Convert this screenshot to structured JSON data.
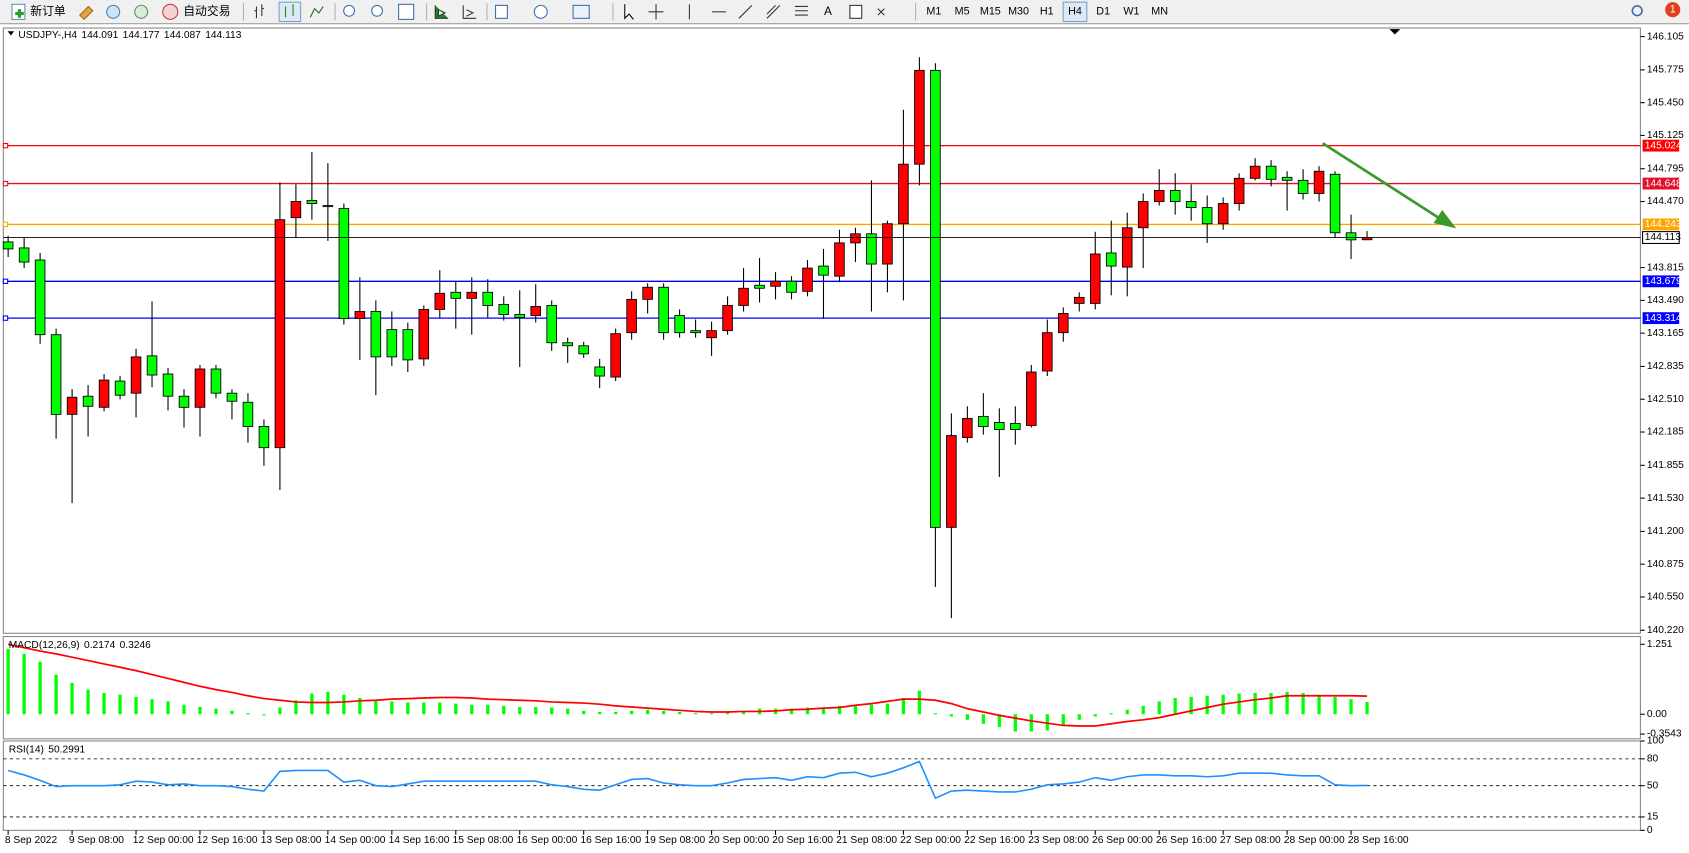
{
  "toolbar": {
    "buttons": [
      "新订单",
      "自动交易"
    ],
    "timeframes": [
      "M1",
      "M5",
      "M15",
      "M30",
      "H1",
      "H4",
      "D1",
      "W1",
      "MN"
    ],
    "active_timeframe_index": 5,
    "notifications": 1
  },
  "chart_data": [
    {
      "type": "candlestick",
      "symbol": "USDJPY-,H4",
      "up_color": "#ff0000",
      "down_color": "#00ff00",
      "open": [
        144.07,
        144.01,
        143.89,
        143.15,
        142.36,
        142.54,
        142.43,
        142.69,
        142.57,
        142.94,
        142.76,
        142.54,
        142.43,
        142.81,
        142.57,
        142.48,
        142.24,
        142.03,
        144.31,
        144.48,
        144.43,
        144.4,
        143.31,
        143.38,
        143.2,
        143.2,
        142.91,
        143.4,
        143.57,
        143.51,
        143.57,
        143.45,
        143.35,
        143.34,
        143.44,
        143.07,
        143.04,
        142.83,
        142.73,
        143.17,
        143.5,
        143.62,
        143.34,
        143.19,
        143.12,
        143.19,
        143.44,
        143.64,
        143.63,
        143.68,
        143.58,
        143.83,
        143.73,
        144.06,
        144.15,
        143.85,
        144.25,
        144.84,
        145.77,
        141.24,
        142.13,
        142.34,
        142.28,
        142.27,
        142.25,
        142.79,
        143.17,
        143.46,
        143.46,
        143.96,
        143.82,
        144.21,
        144.47,
        144.58,
        144.47,
        144.41,
        144.25,
        144.45,
        144.7,
        144.82,
        144.71,
        144.68,
        144.55,
        144.74,
        144.16,
        144.091
      ],
      "high": [
        144.13,
        144.11,
        143.96,
        143.21,
        142.61,
        142.65,
        142.76,
        142.74,
        143.01,
        143.48,
        142.82,
        142.61,
        142.85,
        142.85,
        142.61,
        142.57,
        142.31,
        144.66,
        144.64,
        144.96,
        144.85,
        144.45,
        143.72,
        143.49,
        143.38,
        143.27,
        143.44,
        143.79,
        143.68,
        143.72,
        143.7,
        143.53,
        143.59,
        143.65,
        143.49,
        143.12,
        143.08,
        142.91,
        143.21,
        143.58,
        143.66,
        143.66,
        143.4,
        143.3,
        143.28,
        143.53,
        143.81,
        143.91,
        143.77,
        143.73,
        143.89,
        144.0,
        144.19,
        144.21,
        144.68,
        144.28,
        145.38,
        145.9,
        145.84,
        142.37,
        142.44,
        142.57,
        142.42,
        142.44,
        142.85,
        143.3,
        143.42,
        143.57,
        144.17,
        144.28,
        144.36,
        144.55,
        144.79,
        144.75,
        144.64,
        144.53,
        144.51,
        144.75,
        144.9,
        144.88,
        144.77,
        144.79,
        144.82,
        144.77,
        144.34,
        144.177
      ],
      "low": [
        143.92,
        143.81,
        143.06,
        142.12,
        141.48,
        142.14,
        142.39,
        142.51,
        142.33,
        142.63,
        142.4,
        142.23,
        142.14,
        142.52,
        142.31,
        142.08,
        141.85,
        141.61,
        144.11,
        144.29,
        144.08,
        143.25,
        142.9,
        142.55,
        142.84,
        142.78,
        142.84,
        143.32,
        143.21,
        143.15,
        143.32,
        143.29,
        142.83,
        143.27,
        142.99,
        142.87,
        142.92,
        142.62,
        142.69,
        143.1,
        143.36,
        143.1,
        143.12,
        143.12,
        142.94,
        143.15,
        143.38,
        143.47,
        143.5,
        143.5,
        143.53,
        143.31,
        143.67,
        143.87,
        143.38,
        143.57,
        143.49,
        144.63,
        140.65,
        140.34,
        142.08,
        142.16,
        141.74,
        142.06,
        142.23,
        142.74,
        143.08,
        143.38,
        143.4,
        143.54,
        143.53,
        143.81,
        144.43,
        144.34,
        144.28,
        144.06,
        144.19,
        144.38,
        144.68,
        144.62,
        144.38,
        144.49,
        144.47,
        144.11,
        143.9,
        144.087
      ],
      "close": [
        144.0,
        143.87,
        143.15,
        142.36,
        142.53,
        142.44,
        142.7,
        142.55,
        142.93,
        142.75,
        142.54,
        142.43,
        142.81,
        142.57,
        142.49,
        142.24,
        142.03,
        144.29,
        144.47,
        144.45,
        144.42,
        143.31,
        143.38,
        142.93,
        142.93,
        142.9,
        143.4,
        143.56,
        143.51,
        143.57,
        143.44,
        143.35,
        143.32,
        143.43,
        143.07,
        143.04,
        142.96,
        142.74,
        143.16,
        143.5,
        143.62,
        143.17,
        143.17,
        143.17,
        143.19,
        143.44,
        143.61,
        143.61,
        143.68,
        143.57,
        143.81,
        143.74,
        144.06,
        144.15,
        143.85,
        144.25,
        144.84,
        145.77,
        141.24,
        142.15,
        142.32,
        142.24,
        142.21,
        142.21,
        142.78,
        143.17,
        143.36,
        143.52,
        143.95,
        143.83,
        144.21,
        144.47,
        144.58,
        144.47,
        144.41,
        144.25,
        144.45,
        144.7,
        144.82,
        144.69,
        144.68,
        144.55,
        144.77,
        144.16,
        144.09,
        144.113
      ],
      "xlim": [
        -0.3,
        102.1
      ],
      "xticks": [
        {
          "value": 0,
          "label": "8 Sep 2022"
        },
        {
          "value": 4,
          "label": "9 Sep 08:00"
        },
        {
          "value": 8,
          "label": "12 Sep 00:00"
        },
        {
          "value": 12,
          "label": "12 Sep 16:00"
        },
        {
          "value": 16,
          "label": "13 Sep 08:00"
        },
        {
          "value": 20,
          "label": "14 Sep 00:00"
        },
        {
          "value": 24,
          "label": "14 Sep 16:00"
        },
        {
          "value": 28,
          "label": "15 Sep 08:00"
        },
        {
          "value": 32,
          "label": "16 Sep 00:00"
        },
        {
          "value": 36,
          "label": "16 Sep 16:00"
        },
        {
          "value": 40,
          "label": "19 Sep 08:00"
        },
        {
          "value": 44,
          "label": "20 Sep 00:00"
        },
        {
          "value": 48,
          "label": "20 Sep 16:00"
        },
        {
          "value": 52,
          "label": "21 Sep 08:00"
        },
        {
          "value": 56,
          "label": "22 Sep 00:00"
        },
        {
          "value": 60,
          "label": "22 Sep 16:00"
        },
        {
          "value": 64,
          "label": "23 Sep 08:00"
        },
        {
          "value": 68,
          "label": "26 Sep 00:00"
        },
        {
          "value": 72,
          "label": "26 Sep 16:00"
        },
        {
          "value": 76,
          "label": "27 Sep 08:00"
        },
        {
          "value": 80,
          "label": "28 Sep 00:00"
        },
        {
          "value": 84,
          "label": "28 Sep 16:00"
        }
      ],
      "ylim": [
        140.19,
        146.19
      ],
      "yticks": [
        146.105,
        145.775,
        {
          "value": 145.45,
          "label": "145.450"
        },
        145.125,
        144.795,
        {
          "value": 144.47,
          "label": "144.470"
        },
        143.815,
        {
          "value": 143.49,
          "label": "143.490"
        },
        143.165,
        142.835,
        {
          "value": 142.51,
          "label": "142.510"
        },
        142.185,
        141.855,
        {
          "value": 141.53,
          "label": "141.530"
        },
        {
          "value": 141.2,
          "label": "141.200"
        },
        140.875,
        {
          "value": 140.55,
          "label": "140.550"
        },
        {
          "value": 140.22,
          "label": "140.220"
        }
      ],
      "hlines": [
        {
          "value": 145.024,
          "color": "#ff0000"
        },
        {
          "value": 144.648,
          "color": "#e0102a"
        },
        {
          "value": 144.243,
          "color": "#ffa500"
        },
        {
          "value": 143.679,
          "color": "#0000ff"
        },
        {
          "value": 143.314,
          "color": "#0000ff"
        }
      ]
    },
    {
      "type": "macd",
      "name": "MACD(12,26,9)",
      "histogram_color": "#00ff00",
      "signal_color": "#ff0000",
      "histogram": [
        1.17,
        1.08,
        0.94,
        0.71,
        0.56,
        0.44,
        0.38,
        0.35,
        0.31,
        0.27,
        0.23,
        0.17,
        0.13,
        0.1,
        0.06,
        0.02,
        -0.02,
        0.12,
        0.25,
        0.37,
        0.4,
        0.35,
        0.29,
        0.25,
        0.23,
        0.21,
        0.21,
        0.21,
        0.19,
        0.17,
        0.17,
        0.15,
        0.13,
        0.13,
        0.12,
        0.1,
        0.06,
        0.04,
        0.04,
        0.06,
        0.08,
        0.06,
        0.04,
        0.02,
        0.02,
        0.04,
        0.06,
        0.1,
        0.1,
        0.1,
        0.12,
        0.12,
        0.15,
        0.17,
        0.17,
        0.19,
        0.29,
        0.42,
        0.02,
        -0.04,
        -0.1,
        -0.17,
        -0.23,
        -0.31,
        -0.31,
        -0.29,
        -0.19,
        -0.1,
        -0.04,
        0.02,
        0.08,
        0.15,
        0.23,
        0.29,
        0.31,
        0.33,
        0.35,
        0.37,
        0.38,
        0.38,
        0.4,
        0.38,
        0.35,
        0.31,
        0.27,
        0.2174
      ],
      "signal": [
        1.25,
        1.19,
        1.13,
        1.08,
        1.02,
        0.96,
        0.9,
        0.84,
        0.78,
        0.71,
        0.64,
        0.57,
        0.5,
        0.44,
        0.39,
        0.33,
        0.28,
        0.25,
        0.22,
        0.21,
        0.21,
        0.22,
        0.24,
        0.25,
        0.27,
        0.28,
        0.29,
        0.3,
        0.3,
        0.29,
        0.27,
        0.26,
        0.25,
        0.24,
        0.22,
        0.21,
        0.2,
        0.18,
        0.15,
        0.13,
        0.11,
        0.09,
        0.07,
        0.05,
        0.04,
        0.04,
        0.05,
        0.05,
        0.06,
        0.08,
        0.09,
        0.11,
        0.12,
        0.16,
        0.19,
        0.23,
        0.27,
        0.27,
        0.25,
        0.19,
        0.1,
        0.04,
        -0.02,
        -0.07,
        -0.12,
        -0.16,
        -0.2,
        -0.21,
        -0.21,
        -0.17,
        -0.13,
        -0.1,
        -0.06,
        0.0,
        0.06,
        0.12,
        0.18,
        0.22,
        0.26,
        0.29,
        0.33,
        0.33,
        0.33,
        0.33,
        0.33,
        0.3246
      ],
      "ylim": [
        -0.44,
        1.39
      ],
      "yticks": [
        1.251,
        {
          "value": 0,
          "label": "0.00"
        },
        -0.3543
      ]
    },
    {
      "type": "line",
      "name": "RSI(14)",
      "color": "#1e90ff",
      "values": [
        67,
        62,
        56,
        49,
        50,
        50,
        50,
        51,
        55,
        54,
        51,
        52,
        50,
        50,
        49,
        46,
        44,
        66,
        67,
        67,
        67,
        54,
        56,
        50,
        49,
        52,
        55,
        55,
        55,
        55,
        55,
        55,
        55,
        55,
        51,
        49,
        46,
        45,
        51,
        57,
        58,
        53,
        51,
        50,
        50,
        53,
        57,
        58,
        59,
        56,
        60,
        59,
        64,
        65,
        60,
        64,
        70,
        77,
        36,
        44,
        45,
        44,
        43,
        43,
        46,
        51,
        52,
        54,
        59,
        56,
        60,
        62,
        62,
        61,
        61,
        60,
        61,
        64,
        64,
        64,
        62,
        61,
        61,
        51,
        50,
        50.2991
      ],
      "ylim": [
        0,
        100
      ],
      "yticks": [
        100,
        80,
        50,
        15,
        0
      ]
    }
  ]
}
